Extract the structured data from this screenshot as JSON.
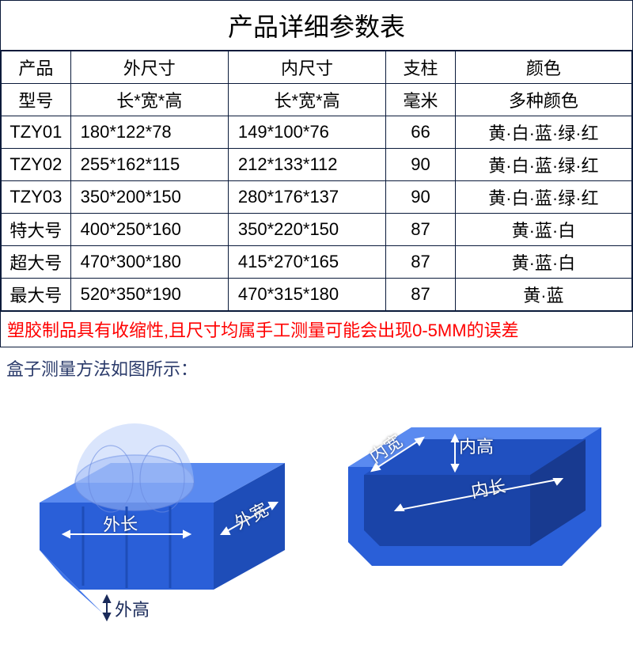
{
  "title": "产品详细参数表",
  "header1": {
    "c0": "产品",
    "c1": "外尺寸",
    "c2": "内尺寸",
    "c3": "支柱",
    "c4": "颜色"
  },
  "header2": {
    "c0": "型号",
    "c1": "长*宽*高",
    "c2": "长*宽*高",
    "c3": "毫米",
    "c4": "多种颜色"
  },
  "rows": [
    {
      "c0": "TZY01",
      "c1": "180*122*78",
      "c2": "149*100*76",
      "c3": "66",
      "c4": "黄·白·蓝·绿·红"
    },
    {
      "c0": "TZY02",
      "c1": "255*162*115",
      "c2": "212*133*112",
      "c3": "90",
      "c4": "黄·白·蓝·绿·红"
    },
    {
      "c0": "TZY03",
      "c1": "350*200*150",
      "c2": "280*176*137",
      "c3": "90",
      "c4": "黄·白·蓝·绿·红"
    },
    {
      "c0": "特大号",
      "c1": "400*250*160",
      "c2": "350*220*150",
      "c3": "87",
      "c4": "黄·蓝·白"
    },
    {
      "c0": "超大号",
      "c1": "470*300*180",
      "c2": "415*270*165",
      "c3": "87",
      "c4": "黄·蓝·白"
    },
    {
      "c0": "最大号",
      "c1": "520*350*190",
      "c2": "470*315*180",
      "c3": "87",
      "c4": "黄·蓝"
    }
  ],
  "note": "塑胶制品具有收缩性,且尺寸均属手工测量可能会出现0-5MM的误差",
  "caption": "盒子测量方法如图所示：",
  "labels": {
    "outer_length": "外长",
    "outer_width": "外宽",
    "outer_height": "外高",
    "inner_length": "内长",
    "inner_width": "内宽",
    "inner_height": "内高"
  },
  "colors": {
    "box_side": "#2a5fd8",
    "box_front": "#3c72e8",
    "box_top": "#5a8af0",
    "box_dark": "#1e4db8",
    "box_inside": "#2050c0",
    "border": "#0a1a3a",
    "note_red": "#ff0000"
  }
}
